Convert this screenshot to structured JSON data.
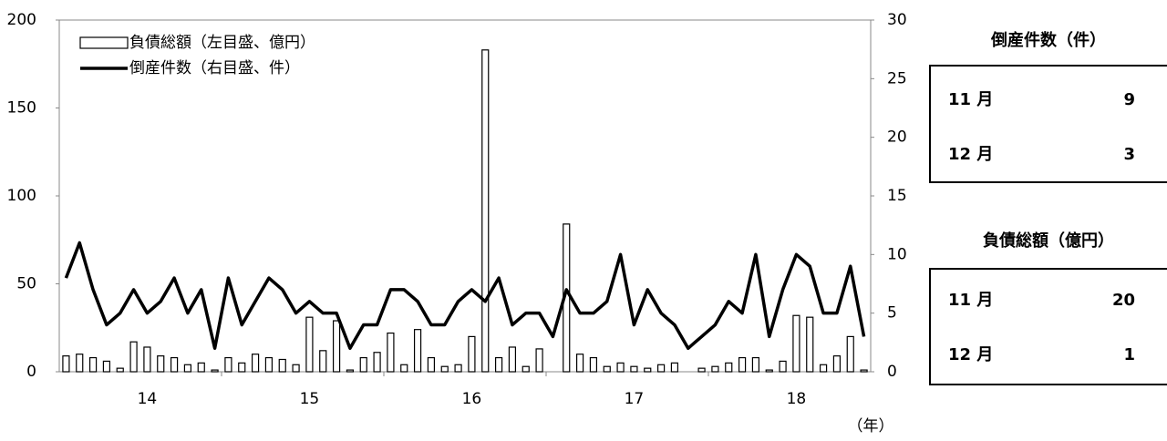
{
  "chart_data": {
    "type": "bar_line",
    "x_label": "（年）",
    "categories": [
      null,
      null,
      null,
      null,
      null,
      null,
      "14",
      null,
      null,
      null,
      null,
      null,
      null,
      null,
      null,
      null,
      null,
      null,
      "15",
      null,
      null,
      null,
      null,
      null,
      null,
      null,
      null,
      null,
      null,
      null,
      "16",
      null,
      null,
      null,
      null,
      null,
      null,
      null,
      null,
      null,
      null,
      null,
      "17",
      null,
      null,
      null,
      null,
      null,
      null,
      null,
      null,
      null,
      null,
      null,
      "18",
      null,
      null,
      null,
      null,
      null
    ],
    "ylim": [
      0,
      200
    ],
    "yticks": [
      0,
      50,
      100,
      150,
      200
    ],
    "y2lim": [
      0,
      30
    ],
    "y2ticks": [
      0,
      5,
      10,
      15,
      20,
      25,
      30
    ],
    "series": [
      {
        "name": "負債総額（左目盛、億円）",
        "type": "bar",
        "color": "#000000",
        "values": [
          9,
          10,
          8,
          6,
          2,
          17,
          14,
          9,
          8,
          4,
          5,
          1,
          8,
          5,
          10,
          8,
          7,
          4,
          31,
          12,
          29,
          1,
          8,
          11,
          22,
          4,
          24,
          8,
          3,
          4,
          20,
          183,
          8,
          14,
          3,
          13,
          0,
          84,
          10,
          8,
          3,
          5,
          3,
          2,
          4,
          5,
          0,
          2,
          3,
          5,
          8,
          8,
          1,
          6,
          32,
          31,
          4,
          9,
          20,
          1
        ]
      },
      {
        "name": "倒産件数（右目盛、件）",
        "type": "line",
        "axis": "y2",
        "color": "#000000",
        "values": [
          8,
          11,
          7,
          4,
          5,
          7,
          5,
          6,
          8,
          5,
          7,
          2,
          8,
          4,
          6,
          8,
          7,
          5,
          6,
          5,
          5,
          2,
          4,
          4,
          7,
          7,
          6,
          4,
          4,
          6,
          7,
          6,
          8,
          4,
          5,
          5,
          3,
          7,
          5,
          5,
          6,
          10,
          4,
          7,
          5,
          4,
          2,
          3,
          4,
          6,
          5,
          10,
          3,
          7,
          10,
          9,
          5,
          5,
          9,
          3
        ]
      }
    ]
  },
  "side_tables": [
    {
      "title": "倒産件数（件）",
      "rows": [
        [
          "11 月",
          "9"
        ],
        [
          "12 月",
          "3"
        ]
      ]
    },
    {
      "title": "負債総額（億円）",
      "rows": [
        [
          "11 月",
          "20"
        ],
        [
          "12 月",
          "1"
        ]
      ]
    }
  ]
}
